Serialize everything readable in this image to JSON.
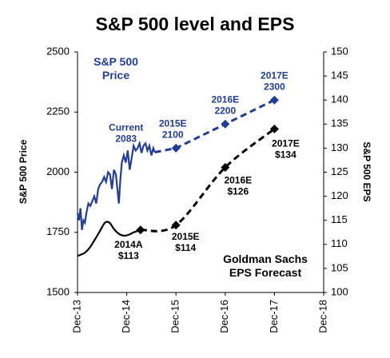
{
  "chart_data": {
    "type": "line",
    "title": "S&P 500 level and EPS",
    "ylabel": "S&P 500 Price",
    "y2label": "S&P 500 EPS",
    "xlim": [
      2013.96,
      2018.96
    ],
    "xticks": [
      {
        "value": 2013.96,
        "label": "Dec-13"
      },
      {
        "value": 2014.96,
        "label": "Dec-14"
      },
      {
        "value": 2015.96,
        "label": "Dec-15"
      },
      {
        "value": 2016.96,
        "label": "Dec-16"
      },
      {
        "value": 2017.96,
        "label": "Dec-17"
      },
      {
        "value": 2018.96,
        "label": "Dec-18"
      }
    ],
    "ylim": [
      1500,
      2500
    ],
    "yticks": [
      1500,
      1750,
      2000,
      2250,
      2500
    ],
    "y2lim": [
      100,
      150
    ],
    "y2ticks": [
      100,
      105,
      110,
      115,
      120,
      125,
      130,
      135,
      140,
      145,
      150
    ],
    "series": [
      {
        "color": "#1f3d99",
        "axis": "y",
        "dash": false,
        "smooth": false,
        "x": [
          2013.96,
          2013.99,
          2014.02,
          2014.05,
          2014.08,
          2014.11,
          2014.14,
          2014.18,
          2014.22,
          2014.26,
          2014.3,
          2014.34,
          2014.38,
          2014.42,
          2014.46,
          2014.5,
          2014.54,
          2014.58,
          2014.62,
          2014.66,
          2014.7,
          2014.74,
          2014.78,
          2014.8,
          2014.83,
          2014.86,
          2014.9,
          2014.94,
          2014.98,
          2015.02,
          2015.06,
          2015.1,
          2015.14,
          2015.18,
          2015.22,
          2015.26,
          2015.3,
          2015.34,
          2015.38,
          2015.42,
          2015.46,
          2015.5,
          2015.53
        ],
        "values": [
          1830,
          1800,
          1850,
          1760,
          1800,
          1790,
          1830,
          1870,
          1860,
          1880,
          1900,
          1870,
          1930,
          1950,
          1960,
          1980,
          1960,
          2000,
          1990,
          1930,
          2010,
          1990,
          1910,
          1870,
          1970,
          2040,
          2070,
          2040,
          2090,
          2010,
          2060,
          2110,
          2090,
          2100,
          2120,
          2080,
          2110,
          2120,
          2090,
          2110,
          2070,
          2100,
          2083
        ]
      },
      {
        "color": "#1f3d99",
        "axis": "y",
        "dash": true,
        "smooth": false,
        "x": [
          2015.53,
          2015.96,
          2016.96,
          2017.96
        ],
        "values": [
          2083,
          2100,
          2200,
          2300
        ],
        "point_labels": [
          "Current",
          "2015E",
          "2016E",
          "2017E"
        ],
        "markers": [
          false,
          true,
          true,
          true
        ]
      },
      {
        "color": "#000000",
        "axis": "y2",
        "dash": false,
        "smooth": true,
        "x": [
          2013.96,
          2014.1,
          2014.2,
          2014.3,
          2014.4,
          2014.5,
          2014.56,
          2014.62,
          2014.7,
          2014.8,
          2014.9,
          2015.0,
          2015.1,
          2015.24
        ],
        "values": [
          107.6,
          108.2,
          109.2,
          110.8,
          112.5,
          114.3,
          114.7,
          114.4,
          113.2,
          112.2,
          111.8,
          112.0,
          112.5,
          113
        ]
      },
      {
        "color": "#000000",
        "axis": "y2",
        "dash": true,
        "smooth": true,
        "x": [
          2015.24,
          2015.96,
          2016.96,
          2017.96
        ],
        "values": [
          113,
          114,
          126,
          134
        ],
        "value_labels": [
          "$113",
          "$114",
          "$126",
          "$134"
        ],
        "point_labels": [
          "2014A",
          "2015E",
          "2016E",
          "2017E"
        ],
        "markers": [
          true,
          true,
          true,
          true
        ]
      }
    ],
    "annotations": [
      {
        "text": "S&P 500 Price",
        "color": "#1f3d99"
      },
      {
        "text": "Goldman Sachs EPS Forecast",
        "color": "#000000"
      }
    ]
  }
}
